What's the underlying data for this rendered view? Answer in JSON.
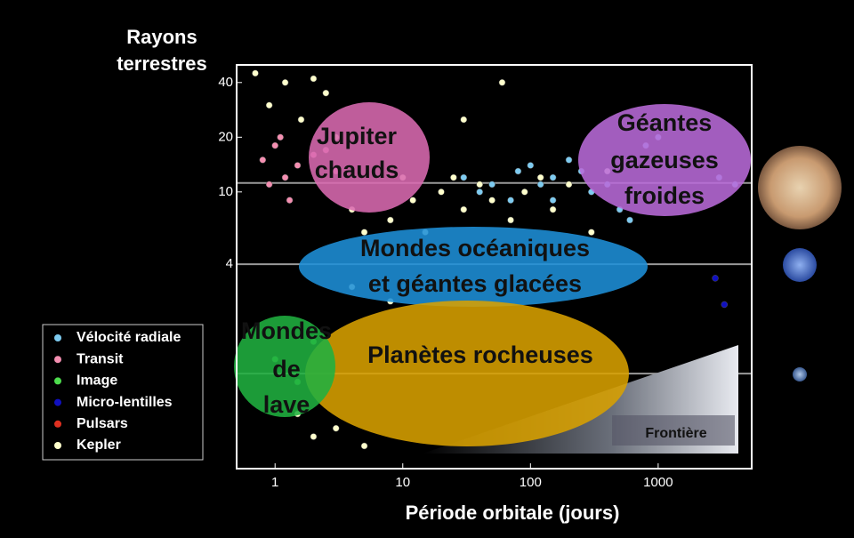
{
  "chart_data": {
    "type": "scatter",
    "y_label": "Rayons terrestres",
    "x_label": "Période orbitale (jours)",
    "xscale": "log",
    "yscale": "log",
    "xlim": [
      0.5,
      5400
    ],
    "ylim": [
      0.3,
      50
    ],
    "xticks": [
      1,
      10,
      100,
      1000
    ],
    "yticks": [
      4,
      10,
      20,
      40
    ],
    "reference_lines": [
      11.2,
      4,
      1
    ],
    "series": [
      {
        "name": "Vélocité radiale",
        "color": "#7ecbf0",
        "x": [
          30,
          50,
          80,
          100,
          150,
          200,
          300,
          400,
          500,
          600,
          800,
          1000,
          1500,
          2000,
          3000,
          4000,
          150,
          250,
          40,
          70,
          120
        ],
        "values": [
          12,
          11,
          13,
          14,
          12,
          15,
          10,
          11,
          8,
          7,
          18,
          20,
          25,
          15,
          12,
          11,
          9,
          13,
          10,
          9,
          11
        ]
      },
      {
        "name": "Transit",
        "color": "#f48fb1",
        "x": [
          0.8,
          1,
          1.2,
          1.5,
          2,
          3,
          1.1,
          0.9,
          1.3,
          2.5
        ],
        "values": [
          15,
          18,
          12,
          14,
          16,
          13,
          20,
          11,
          9,
          17
        ]
      },
      {
        "name": "Image",
        "color": "#4ddc4d",
        "x": [
          1,
          1.5,
          2
        ],
        "values": [
          1.2,
          0.9,
          1.5
        ]
      },
      {
        "name": "Micro-lentilles",
        "color": "#1010c0",
        "x": [
          2800,
          3300
        ],
        "values": [
          3.35,
          2.4
        ]
      },
      {
        "name": "Pulsars",
        "color": "#e03020",
        "x": [],
        "values": []
      },
      {
        "name": "Kepler",
        "color": "#ffffcc",
        "x": [
          0.7,
          0.9,
          1.2,
          1.6,
          2,
          2.5,
          3,
          4,
          5,
          6,
          8,
          10,
          12,
          15,
          20,
          25,
          30,
          40,
          50,
          70,
          90,
          120,
          150,
          200,
          300,
          400,
          2,
          3,
          5,
          8,
          1.5,
          4,
          30,
          60
        ],
        "values": [
          45,
          30,
          40,
          25,
          42,
          35,
          20,
          8,
          6,
          5,
          7,
          12,
          9,
          6,
          10,
          12,
          8,
          11,
          9,
          7,
          10,
          12,
          8,
          11,
          6,
          13,
          0.45,
          0.5,
          0.4,
          2.5,
          0.6,
          3,
          25,
          40
        ]
      }
    ],
    "regions": [
      {
        "label": [
          "Jupiter",
          "chauds"
        ],
        "color": "#d96ab0"
      },
      {
        "label": [
          "Géantes",
          "gazeuses",
          "froides"
        ],
        "color": "#b86ad8"
      },
      {
        "label": [
          "Mondes océaniques",
          "et géantes glacées"
        ],
        "color": "#1e90d8"
      },
      {
        "label": [
          "Planètes rocheuses"
        ],
        "color": "#d8a000"
      },
      {
        "label": [
          "Mondes",
          "de",
          "lave"
        ],
        "color": "#20b040"
      }
    ],
    "boundary_label": "Frontière"
  }
}
